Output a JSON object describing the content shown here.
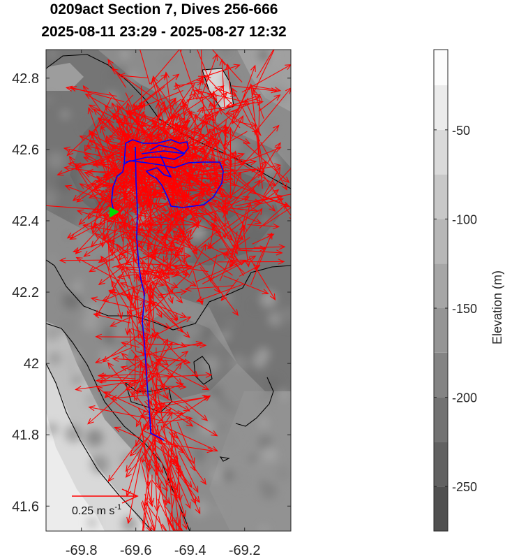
{
  "title": {
    "line1": "0209act Section 7, Dives 256-666",
    "line2": "2025-08-11 23:29 - 2025-08-27 12:32"
  },
  "map": {
    "x_ticks": [
      "-69.8",
      "-69.6",
      "-69.4",
      "-69.2"
    ],
    "y_ticks": [
      "42.8",
      "42.6",
      "42.4",
      "42.2",
      "42",
      "41.8",
      "41.6"
    ],
    "xlim": [
      -69.93,
      -69.03
    ],
    "ylim": [
      41.53,
      42.88
    ],
    "track_color": "#0000ff",
    "vector_color": "#ff0000",
    "start_marker_color": "#00dd00",
    "scale_label": "0.25 m s",
    "scale_label_exponent": "-1"
  },
  "colorbar": {
    "label": "Elevation (m)",
    "ticks": [
      "-50",
      "-100",
      "-150",
      "-200",
      "-250"
    ],
    "range": [
      -275,
      -5
    ],
    "levels": [
      -275,
      -250,
      -225,
      -200,
      -175,
      -150,
      -125,
      -100,
      -75,
      -50,
      -25,
      -5
    ]
  }
}
